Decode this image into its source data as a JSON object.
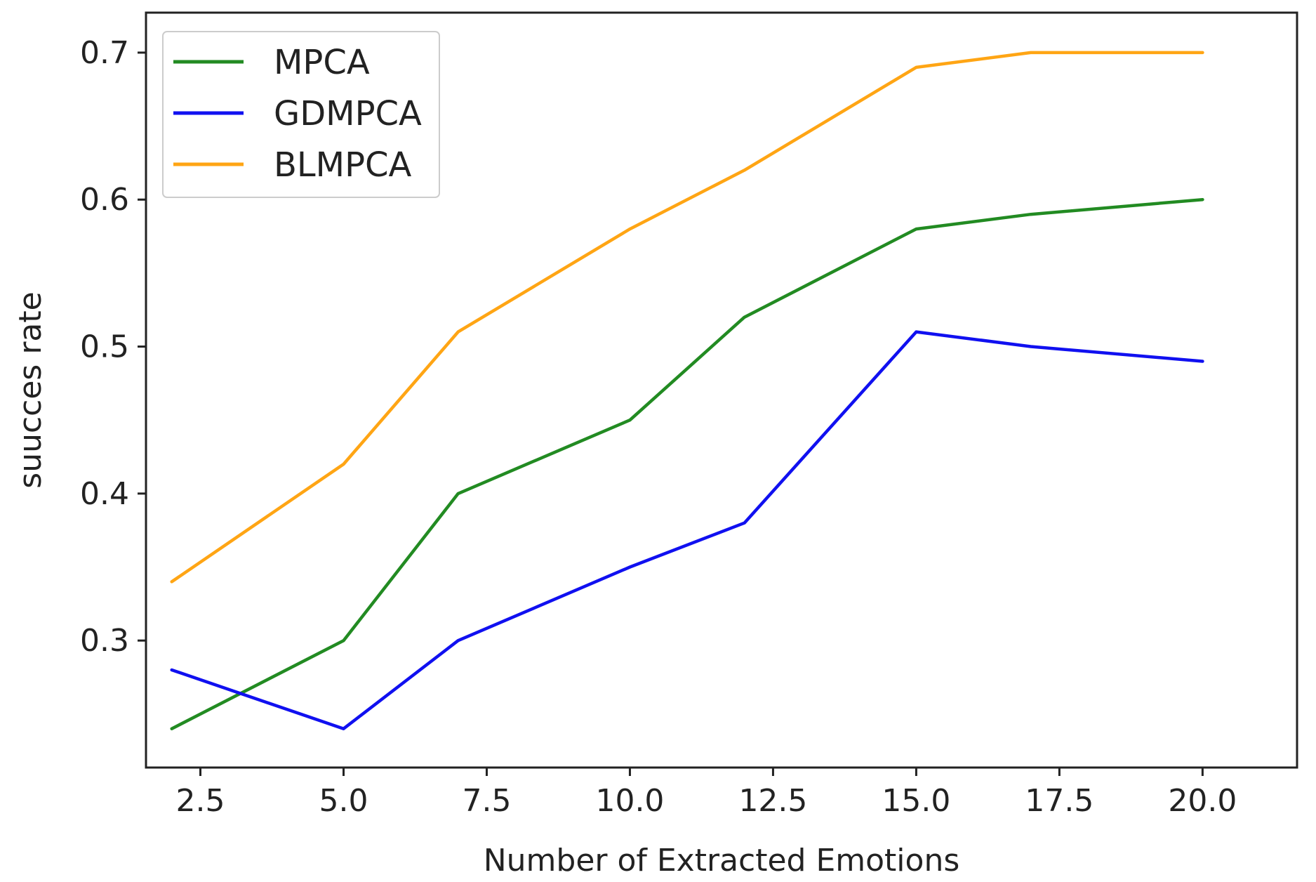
{
  "chart_data": {
    "type": "line",
    "title": "",
    "xlabel": "Number of Extracted Emotions",
    "ylabel": "suucces rate",
    "xlim": [
      1.55,
      21.65
    ],
    "ylim": [
      0.2136,
      0.7272
    ],
    "grid": false,
    "legend_position": "top-left",
    "x": [
      2,
      5,
      7,
      10,
      12,
      15,
      17,
      20
    ],
    "x_ticks": [
      {
        "value": 2.5,
        "label": "2.5"
      },
      {
        "value": 5.0,
        "label": "5.0"
      },
      {
        "value": 7.5,
        "label": "7.5"
      },
      {
        "value": 10.0,
        "label": "10.0"
      },
      {
        "value": 12.5,
        "label": "12.5"
      },
      {
        "value": 15.0,
        "label": "15.0"
      },
      {
        "value": 17.5,
        "label": "17.5"
      },
      {
        "value": 20.0,
        "label": "20.0"
      }
    ],
    "y_ticks": [
      {
        "value": 0.3,
        "label": "0.3"
      },
      {
        "value": 0.4,
        "label": "0.4"
      },
      {
        "value": 0.5,
        "label": "0.5"
      },
      {
        "value": 0.6,
        "label": "0.6"
      },
      {
        "value": 0.7,
        "label": "0.7"
      }
    ],
    "series": [
      {
        "name": "MPCA",
        "color": "#228B22",
        "values": [
          0.24,
          0.3,
          0.4,
          0.45,
          0.52,
          0.58,
          0.59,
          0.6
        ]
      },
      {
        "name": "GDMPCA",
        "color": "#1010F0",
        "values": [
          0.28,
          0.24,
          0.3,
          0.35,
          0.38,
          0.51,
          0.5,
          0.49
        ]
      },
      {
        "name": "BLMPCA",
        "color": "#FFA514",
        "values": [
          0.34,
          0.42,
          0.51,
          0.58,
          0.62,
          0.69,
          0.7,
          0.7
        ]
      }
    ]
  }
}
